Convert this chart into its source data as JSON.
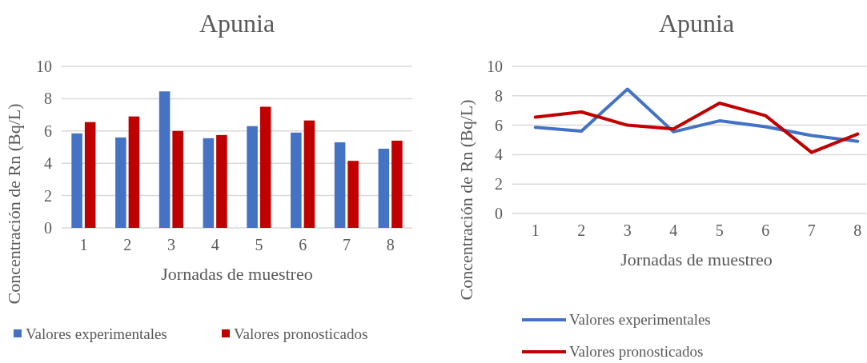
{
  "chart_data": [
    {
      "type": "bar",
      "title": "Apunia",
      "xlabel": "Jornadas de muestreo",
      "ylabel": "Concentración de Rn (Bq/L)",
      "categories": [
        "1",
        "2",
        "3",
        "4",
        "5",
        "6",
        "7",
        "8"
      ],
      "series": [
        {
          "name": "Valores experimentales",
          "color": "#4472c4",
          "values": [
            5.85,
            5.6,
            8.45,
            5.55,
            6.3,
            5.9,
            5.3,
            4.9
          ]
        },
        {
          "name": "Valores pronosticados",
          "color": "#c00000",
          "values": [
            6.55,
            6.9,
            6.0,
            5.75,
            7.5,
            6.65,
            4.15,
            5.4
          ]
        }
      ],
      "ylim": [
        0,
        10
      ],
      "yticks": [
        0,
        2,
        4,
        6,
        8,
        10
      ],
      "grid": "y",
      "legend": "bottom"
    },
    {
      "type": "line",
      "title": "Apunia",
      "xlabel": "Jornadas de muestreo",
      "ylabel": "Concentración de Rn (Bq/L)",
      "categories": [
        "1",
        "2",
        "3",
        "4",
        "5",
        "6",
        "7",
        "8"
      ],
      "series": [
        {
          "name": "Valores experimentales",
          "color": "#4472c4",
          "values": [
            5.85,
            5.6,
            8.45,
            5.55,
            6.3,
            5.9,
            5.3,
            4.9
          ]
        },
        {
          "name": "Valores pronosticados",
          "color": "#c00000",
          "values": [
            6.55,
            6.9,
            6.0,
            5.75,
            7.5,
            6.65,
            4.15,
            5.4
          ]
        }
      ],
      "ylim": [
        0,
        10
      ],
      "yticks": [
        0,
        2,
        4,
        6,
        8,
        10
      ],
      "grid": "y",
      "legend": "bottom",
      "marker": "none",
      "line_style": "solid"
    }
  ]
}
